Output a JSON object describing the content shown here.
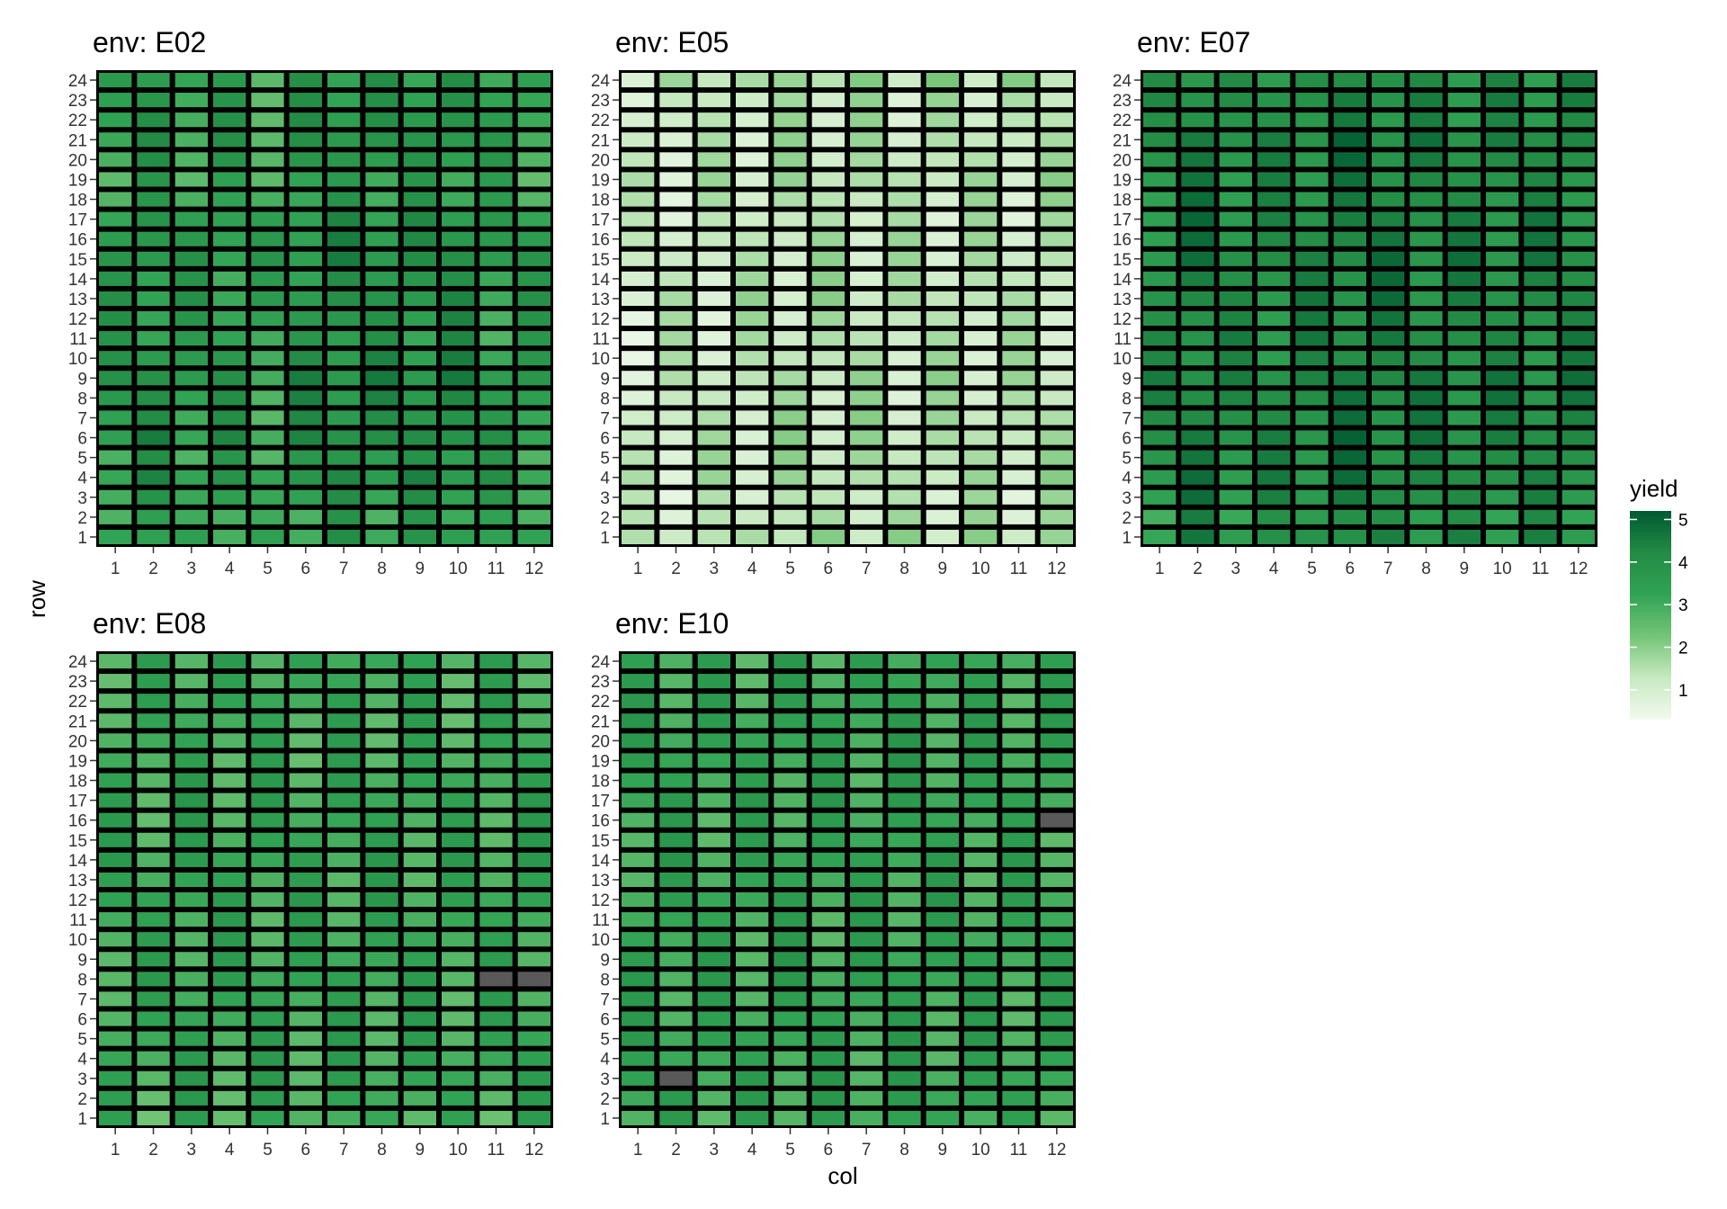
{
  "chart_data": {
    "type": "heatmap",
    "xlabel": "col",
    "ylabel": "row",
    "x_ticks": [
      "1",
      "2",
      "3",
      "4",
      "5",
      "6",
      "7",
      "8",
      "9",
      "10",
      "11",
      "12"
    ],
    "y_ticks": [
      "1",
      "2",
      "3",
      "4",
      "5",
      "6",
      "7",
      "8",
      "9",
      "10",
      "11",
      "12",
      "13",
      "14",
      "15",
      "16",
      "17",
      "18",
      "19",
      "20",
      "21",
      "22",
      "23",
      "24"
    ],
    "legend": {
      "title": "yield",
      "placement": "right",
      "ticks": [
        "1",
        "2",
        "3",
        "4",
        "5"
      ],
      "range": [
        0.3,
        5.2
      ],
      "colors": [
        "#f1faee",
        "#c7e9c0",
        "#74c476",
        "#31a354",
        "#238b45",
        "#005a32"
      ],
      "na_color": "#595959"
    },
    "grid": false,
    "panels": [
      {
        "title": "env: E02",
        "row_values": [
          3.3,
          3.1,
          3.4,
          3.7,
          3.4,
          3.8,
          3.6,
          3.7,
          3.8,
          3.6,
          3.4,
          3.5,
          3.6,
          3.5,
          3.7,
          3.6,
          3.5,
          3.2,
          3.1,
          3.4,
          3.5,
          3.5,
          3.4,
          3.4
        ],
        "col_offsets": [
          0.0,
          0.2,
          -0.1,
          0.0,
          -0.4,
          0.2,
          0.35,
          0.25,
          0.25,
          0.4,
          -0.1,
          -0.1
        ],
        "missing": []
      },
      {
        "title": "env: E05",
        "row_values": [
          1.5,
          1.3,
          1.2,
          1.4,
          1.4,
          1.4,
          1.4,
          1.3,
          1.4,
          1.3,
          1.3,
          1.3,
          1.4,
          1.3,
          1.3,
          1.3,
          1.2,
          1.3,
          1.4,
          1.3,
          1.3,
          1.3,
          1.3,
          1.6
        ],
        "col_offsets": [
          -0.3,
          -0.15,
          -0.1,
          0.0,
          0.1,
          0.15,
          0.1,
          0.0,
          0.05,
          0.05,
          0.0,
          0.1
        ],
        "missing": []
      },
      {
        "title": "env: E07",
        "row_values": [
          3.8,
          3.6,
          3.9,
          4.0,
          4.0,
          4.1,
          4.0,
          4.1,
          4.1,
          3.9,
          4.0,
          3.9,
          4.0,
          4.0,
          4.1,
          4.0,
          4.0,
          3.9,
          3.9,
          4.0,
          4.1,
          3.8,
          3.9,
          3.8
        ],
        "col_offsets": [
          -0.1,
          0.4,
          0.0,
          0.05,
          0.15,
          0.4,
          0.35,
          0.15,
          0.15,
          0.1,
          0.15,
          0.2
        ],
        "missing": []
      },
      {
        "title": "env: E08",
        "row_values": [
          2.9,
          3.0,
          3.1,
          3.1,
          3.1,
          3.1,
          3.1,
          3.2,
          3.1,
          3.1,
          3.1,
          3.2,
          3.1,
          3.2,
          3.1,
          3.1,
          3.1,
          3.1,
          3.0,
          3.0,
          3.0,
          3.1,
          3.0,
          3.1
        ],
        "col_offsets": [
          0.0,
          -0.05,
          0.15,
          0.0,
          0.05,
          0.0,
          0.05,
          0.05,
          0.0,
          -0.05,
          0.0,
          0.1
        ],
        "missing": [
          [
            8,
            11
          ],
          [
            8,
            12
          ]
        ]
      },
      {
        "title": "env: E10",
        "row_values": [
          3.1,
          3.2,
          3.2,
          3.1,
          3.2,
          3.1,
          3.1,
          3.2,
          3.2,
          3.1,
          3.1,
          3.2,
          3.1,
          3.2,
          3.1,
          3.1,
          3.2,
          3.1,
          3.2,
          3.2,
          3.2,
          3.1,
          3.1,
          3.1
        ],
        "col_offsets": [
          0.05,
          0.1,
          0.0,
          0.0,
          0.1,
          0.05,
          0.05,
          0.1,
          0.05,
          0.0,
          0.0,
          0.0
        ],
        "missing": [
          [
            3,
            2
          ],
          [
            16,
            12
          ]
        ]
      }
    ]
  }
}
